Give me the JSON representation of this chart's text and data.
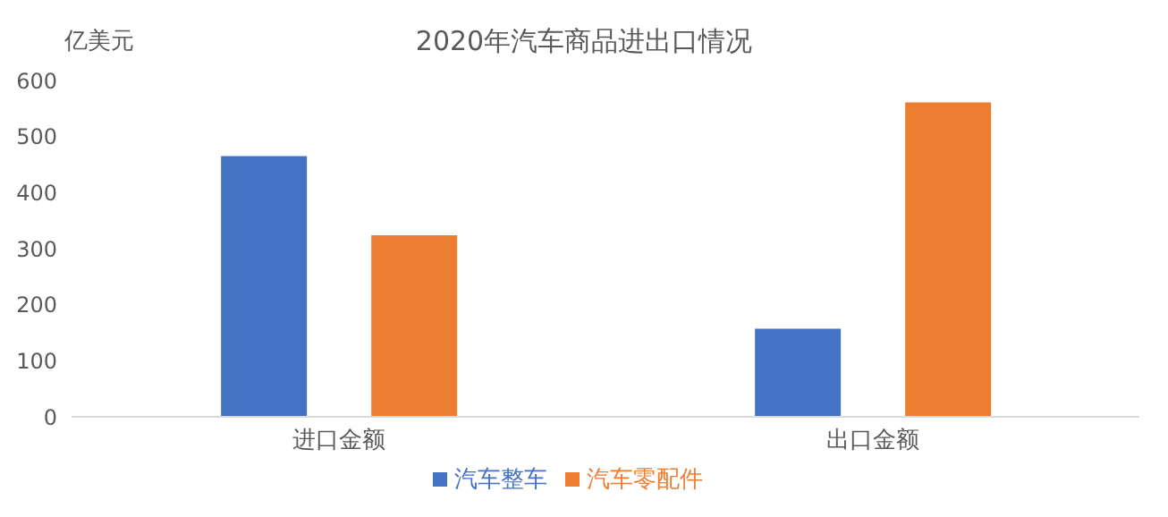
{
  "chart_data": {
    "type": "bar",
    "title": "2020年汽车商品进出口情况",
    "ylabel": "亿美元",
    "categories": [
      "进口金额",
      "出口金额"
    ],
    "series": [
      {
        "name": "汽车整车",
        "color": "#4472c4",
        "values": [
          465,
          157
        ]
      },
      {
        "name": "汽车零配件",
        "color": "#ed7d31",
        "values": [
          324,
          561
        ]
      }
    ],
    "ylim": [
      0,
      600
    ],
    "yticks": [
      0,
      100,
      200,
      300,
      400,
      500,
      600
    ],
    "grid": false,
    "legend": "bottom"
  }
}
